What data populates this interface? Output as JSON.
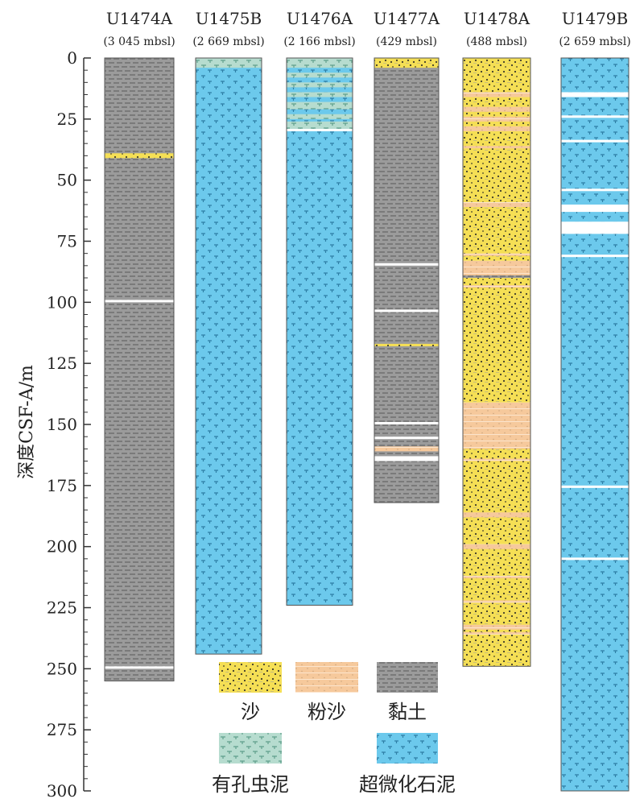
{
  "y_axis": {
    "label": "深度CSF-A/m",
    "min": 0,
    "max": 300,
    "ticks": [
      "0",
      "25",
      "50",
      "75",
      "100",
      "125",
      "150",
      "175",
      "200",
      "225",
      "250",
      "275",
      "300"
    ]
  },
  "lithologies": {
    "sand": {
      "label": "沙",
      "color": "#f5df55"
    },
    "silt": {
      "label": "粉沙",
      "color": "#f6c99c"
    },
    "clay": {
      "label": "黏土",
      "color": "#9b9b9b"
    },
    "foram_mud": {
      "label": "有孔虫泥",
      "color": "#b6dccf"
    },
    "nanno_mud": {
      "label": "超微化石泥",
      "color": "#6cc9ec"
    }
  },
  "columns": [
    {
      "site": "U1474A",
      "depth_label": "(3 045 mbsl)",
      "base": 255,
      "base_lith": "clay",
      "bands": [
        {
          "lith": "sand",
          "top": 39,
          "bottom": 41
        },
        {
          "lith": "gap",
          "top": 99,
          "bottom": 100
        },
        {
          "lith": "gap",
          "top": 249,
          "bottom": 250
        }
      ]
    },
    {
      "site": "U1475B",
      "depth_label": "(2 669 mbsl)",
      "base": 244,
      "base_lith": "nanno_mud",
      "bands": [
        {
          "lith": "foram_mud",
          "top": 0,
          "bottom": 4
        }
      ]
    },
    {
      "site": "U1476A",
      "depth_label": "(2 166 mbsl)",
      "base": 224,
      "base_lith": "nanno_mud",
      "bands": [
        {
          "lith": "foram_mud",
          "top": 0,
          "bottom": 4
        },
        {
          "lith": "foram_mud",
          "top": 6,
          "bottom": 8
        },
        {
          "lith": "foram_mud",
          "top": 10,
          "bottom": 12
        },
        {
          "lith": "foram_mud",
          "top": 14,
          "bottom": 16
        },
        {
          "lith": "foram_mud",
          "top": 18,
          "bottom": 21
        },
        {
          "lith": "foram_mud",
          "top": 23,
          "bottom": 25
        },
        {
          "lith": "foram_mud",
          "top": 26,
          "bottom": 29
        },
        {
          "lith": "gap",
          "top": 29,
          "bottom": 30
        }
      ]
    },
    {
      "site": "U1477A",
      "depth_label": "(429 mbsl)",
      "base": 182,
      "base_lith": "clay",
      "bands": [
        {
          "lith": "sand",
          "top": 0,
          "bottom": 4
        },
        {
          "lith": "gap",
          "top": 84,
          "bottom": 85
        },
        {
          "lith": "gap",
          "top": 103,
          "bottom": 104
        },
        {
          "lith": "sand",
          "top": 117,
          "bottom": 118
        },
        {
          "lith": "gap",
          "top": 149,
          "bottom": 150
        },
        {
          "lith": "gap",
          "top": 155,
          "bottom": 156
        },
        {
          "lith": "silt",
          "top": 159,
          "bottom": 161
        },
        {
          "lith": "gap",
          "top": 163,
          "bottom": 165
        }
      ]
    },
    {
      "site": "U1478A",
      "depth_label": "(488 mbsl)",
      "base": 249,
      "base_lith": "sand",
      "bands": [
        {
          "lith": "silt",
          "top": 14,
          "bottom": 16
        },
        {
          "lith": "silt",
          "top": 20,
          "bottom": 22
        },
        {
          "lith": "silt",
          "top": 24,
          "bottom": 26
        },
        {
          "lith": "silt",
          "top": 28,
          "bottom": 30
        },
        {
          "lith": "silt",
          "top": 36,
          "bottom": 37
        },
        {
          "lith": "silt",
          "top": 59,
          "bottom": 61
        },
        {
          "lith": "silt",
          "top": 80,
          "bottom": 81
        },
        {
          "lith": "silt",
          "top": 83,
          "bottom": 89
        },
        {
          "lith": "clay",
          "top": 89,
          "bottom": 90
        },
        {
          "lith": "silt",
          "top": 93,
          "bottom": 94
        },
        {
          "lith": "silt",
          "top": 141,
          "bottom": 160
        },
        {
          "lith": "silt",
          "top": 164,
          "bottom": 165
        },
        {
          "lith": "silt",
          "top": 186,
          "bottom": 188
        },
        {
          "lith": "silt",
          "top": 199,
          "bottom": 201
        },
        {
          "lith": "silt",
          "top": 212,
          "bottom": 213
        },
        {
          "lith": "silt",
          "top": 222,
          "bottom": 223
        },
        {
          "lith": "silt",
          "top": 232,
          "bottom": 234
        },
        {
          "lith": "silt",
          "top": 235,
          "bottom": 236
        }
      ]
    },
    {
      "site": "U1479B",
      "depth_label": "(2 659 mbsl)",
      "base": 300,
      "base_lith": "nanno_mud",
      "bands": [
        {
          "lith": "gap",
          "top": 14,
          "bottom": 16
        },
        {
          "lith": "gap",
          "top": 23.5,
          "bottom": 24.5
        },
        {
          "lith": "gap",
          "top": 33.5,
          "bottom": 34.5
        },
        {
          "lith": "gap",
          "top": 53.5,
          "bottom": 54.5
        },
        {
          "lith": "gap",
          "top": 60,
          "bottom": 63
        },
        {
          "lith": "gap",
          "top": 67,
          "bottom": 72
        },
        {
          "lith": "gap",
          "top": 80.5,
          "bottom": 81.5
        },
        {
          "lith": "gap",
          "top": 175,
          "bottom": 176
        },
        {
          "lith": "gap",
          "top": 204.5,
          "bottom": 205.5
        }
      ]
    }
  ],
  "legend": [
    {
      "key": "sand",
      "label": "沙"
    },
    {
      "key": "silt",
      "label": "粉沙"
    },
    {
      "key": "clay",
      "label": "黏土"
    },
    {
      "key": "foram_mud",
      "label": "有孔虫泥"
    },
    {
      "key": "nanno_mud",
      "label": "超微化石泥"
    }
  ]
}
